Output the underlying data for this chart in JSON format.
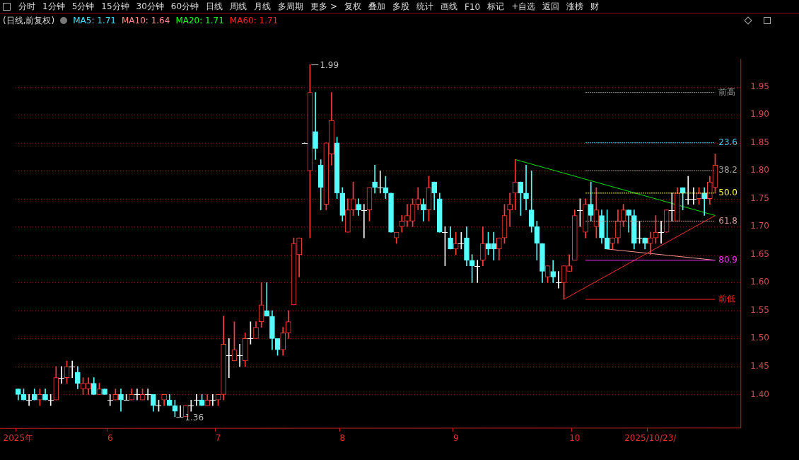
{
  "chart_data": {
    "type": "candlestick",
    "title": "(日线,前复权)",
    "subtitle": "MA5: 1.71  MA10: 1.64  MA20: 1.71  MA60: 1.71",
    "categories": [
      "2025年",
      null,
      null,
      null,
      null,
      null,
      null,
      null,
      null,
      null,
      null,
      null,
      null,
      null,
      null,
      null,
      null,
      "6",
      null,
      null,
      null,
      null,
      null,
      null,
      null,
      null,
      null,
      null,
      null,
      null,
      null,
      null,
      null,
      null,
      null,
      null,
      null,
      "7",
      null,
      null,
      null,
      null,
      null,
      null,
      null,
      null,
      null,
      null,
      null,
      null,
      null,
      null,
      null,
      null,
      null,
      null,
      null,
      null,
      null,
      null,
      "8",
      null,
      null,
      null,
      null,
      null,
      null,
      null,
      null,
      null,
      null,
      null,
      null,
      null,
      null,
      null,
      null,
      null,
      null,
      null,
      null,
      "9",
      null,
      null,
      null,
      null,
      null,
      null,
      null,
      null,
      null,
      null,
      null,
      null,
      null,
      null,
      null,
      null,
      null,
      null,
      null,
      null,
      null,
      "10",
      null,
      null,
      null,
      null,
      null,
      null,
      null,
      null,
      null,
      null,
      null,
      null,
      null,
      "2025/10/23/",
      null,
      null,
      null,
      null,
      null,
      null,
      null,
      null,
      null,
      null,
      null,
      null
    ],
    "ohlc": [
      [
        1.41,
        1.41,
        1.39,
        1.4
      ],
      [
        1.4,
        1.41,
        1.39,
        1.39
      ],
      [
        1.39,
        1.4,
        1.38,
        1.39
      ],
      [
        1.4,
        1.41,
        1.39,
        1.39
      ],
      [
        1.39,
        1.41,
        1.38,
        1.4
      ],
      [
        1.4,
        1.41,
        1.39,
        1.39
      ],
      [
        1.39,
        1.4,
        1.38,
        1.39
      ],
      [
        1.39,
        1.45,
        1.39,
        1.43
      ],
      [
        1.43,
        1.45,
        1.42,
        1.43
      ],
      [
        1.43,
        1.46,
        1.42,
        1.45
      ],
      [
        1.45,
        1.46,
        1.43,
        1.45
      ],
      [
        1.44,
        1.45,
        1.41,
        1.42
      ],
      [
        1.41,
        1.43,
        1.4,
        1.42
      ],
      [
        1.41,
        1.43,
        1.4,
        1.42
      ],
      [
        1.42,
        1.43,
        1.4,
        1.4
      ],
      [
        1.4,
        1.42,
        1.4,
        1.41
      ],
      [
        1.41,
        1.41,
        1.4,
        1.4
      ],
      [
        1.39,
        1.4,
        1.38,
        1.39
      ],
      [
        1.39,
        1.41,
        1.39,
        1.4
      ],
      [
        1.4,
        1.41,
        1.37,
        1.39
      ],
      [
        1.39,
        1.4,
        1.39,
        1.39
      ],
      [
        1.39,
        1.41,
        1.39,
        1.4
      ],
      [
        1.4,
        1.41,
        1.39,
        1.4
      ],
      [
        1.39,
        1.41,
        1.39,
        1.4
      ],
      [
        1.4,
        1.41,
        1.39,
        1.4
      ],
      [
        1.4,
        1.4,
        1.37,
        1.38
      ],
      [
        1.38,
        1.39,
        1.37,
        1.38
      ],
      [
        1.39,
        1.4,
        1.38,
        1.4
      ],
      [
        1.39,
        1.4,
        1.38,
        1.38
      ],
      [
        1.38,
        1.39,
        1.36,
        1.37
      ],
      [
        1.36,
        1.38,
        1.36,
        1.36
      ],
      [
        1.36,
        1.38,
        1.36,
        1.38
      ],
      [
        1.38,
        1.39,
        1.37,
        1.38
      ],
      [
        1.39,
        1.4,
        1.38,
        1.39
      ],
      [
        1.39,
        1.4,
        1.38,
        1.38
      ],
      [
        1.38,
        1.4,
        1.38,
        1.39
      ],
      [
        1.39,
        1.4,
        1.38,
        1.39
      ],
      [
        1.39,
        1.4,
        1.38,
        1.4
      ],
      [
        1.4,
        1.54,
        1.39,
        1.49
      ],
      [
        1.47,
        1.5,
        1.43,
        1.47
      ],
      [
        1.46,
        1.53,
        1.46,
        1.48
      ],
      [
        1.47,
        1.49,
        1.45,
        1.47
      ],
      [
        1.46,
        1.51,
        1.45,
        1.5
      ],
      [
        1.5,
        1.53,
        1.49,
        1.5
      ],
      [
        1.5,
        1.53,
        1.5,
        1.52
      ],
      [
        1.53,
        1.6,
        1.52,
        1.56
      ],
      [
        1.55,
        1.6,
        1.54,
        1.54
      ],
      [
        1.54,
        1.55,
        1.48,
        1.5
      ],
      [
        1.5,
        1.5,
        1.47,
        1.48
      ],
      [
        1.48,
        1.52,
        1.47,
        1.51
      ],
      [
        1.51,
        1.55,
        1.5,
        1.53
      ],
      [
        1.56,
        1.68,
        1.56,
        1.67
      ],
      [
        1.65,
        1.68,
        1.61,
        1.68
      ],
      [
        1.85,
        1.85,
        1.85,
        1.85
      ],
      [
        1.8,
        1.99,
        1.68,
        1.94
      ],
      [
        1.87,
        1.94,
        1.82,
        1.84
      ],
      [
        1.81,
        1.82,
        1.73,
        1.77
      ],
      [
        1.74,
        1.85,
        1.73,
        1.85
      ],
      [
        1.83,
        1.94,
        1.81,
        1.89
      ],
      [
        1.85,
        1.86,
        1.75,
        1.76
      ],
      [
        1.76,
        1.77,
        1.71,
        1.72
      ],
      [
        1.69,
        1.75,
        1.69,
        1.73
      ],
      [
        1.73,
        1.78,
        1.72,
        1.75
      ],
      [
        1.74,
        1.75,
        1.72,
        1.73
      ],
      [
        1.73,
        1.74,
        1.68,
        1.73
      ],
      [
        1.73,
        1.77,
        1.71,
        1.77
      ],
      [
        1.78,
        1.81,
        1.76,
        1.77
      ],
      [
        1.77,
        1.8,
        1.76,
        1.77
      ],
      [
        1.77,
        1.79,
        1.75,
        1.76
      ],
      [
        1.76,
        1.76,
        1.69,
        1.69
      ],
      [
        1.68,
        1.69,
        1.67,
        1.69
      ],
      [
        1.7,
        1.72,
        1.69,
        1.71
      ],
      [
        1.71,
        1.74,
        1.7,
        1.72
      ],
      [
        1.71,
        1.75,
        1.7,
        1.74
      ],
      [
        1.74,
        1.77,
        1.73,
        1.75
      ],
      [
        1.74,
        1.75,
        1.71,
        1.73
      ],
      [
        1.73,
        1.79,
        1.71,
        1.77
      ],
      [
        1.78,
        1.78,
        1.73,
        1.76
      ],
      [
        1.75,
        1.76,
        1.69,
        1.69
      ],
      [
        1.69,
        1.7,
        1.63,
        1.69
      ],
      [
        1.68,
        1.7,
        1.66,
        1.66
      ],
      [
        1.66,
        1.69,
        1.65,
        1.67
      ],
      [
        1.67,
        1.69,
        1.66,
        1.67
      ],
      [
        1.68,
        1.7,
        1.63,
        1.64
      ],
      [
        1.64,
        1.65,
        1.6,
        1.63
      ],
      [
        1.63,
        1.64,
        1.6,
        1.63
      ],
      [
        1.64,
        1.7,
        1.63,
        1.67
      ],
      [
        1.67,
        1.69,
        1.65,
        1.66
      ],
      [
        1.67,
        1.69,
        1.64,
        1.66
      ],
      [
        1.66,
        1.68,
        1.64,
        1.68
      ],
      [
        1.68,
        1.74,
        1.67,
        1.72
      ],
      [
        1.73,
        1.76,
        1.7,
        1.74
      ],
      [
        1.76,
        1.82,
        1.73,
        1.78
      ],
      [
        1.78,
        1.78,
        1.72,
        1.76
      ],
      [
        1.76,
        1.81,
        1.73,
        1.75
      ],
      [
        1.73,
        1.8,
        1.69,
        1.7
      ],
      [
        1.7,
        1.71,
        1.64,
        1.67
      ],
      [
        1.67,
        1.67,
        1.6,
        1.62
      ],
      [
        1.61,
        1.63,
        1.6,
        1.63
      ],
      [
        1.62,
        1.64,
        1.6,
        1.61
      ],
      [
        1.6,
        1.62,
        1.59,
        1.6
      ],
      [
        1.6,
        1.63,
        1.57,
        1.63
      ],
      [
        1.62,
        1.65,
        1.62,
        1.63
      ],
      [
        1.64,
        1.73,
        1.64,
        1.72
      ],
      [
        1.73,
        1.75,
        1.7,
        1.73
      ],
      [
        1.69,
        1.75,
        1.68,
        1.74
      ],
      [
        1.74,
        1.78,
        1.71,
        1.72
      ],
      [
        1.7,
        1.77,
        1.68,
        1.73
      ],
      [
        1.72,
        1.73,
        1.67,
        1.68
      ],
      [
        1.68,
        1.73,
        1.66,
        1.66
      ],
      [
        1.67,
        1.68,
        1.66,
        1.68
      ],
      [
        1.68,
        1.73,
        1.67,
        1.71
      ],
      [
        1.71,
        1.74,
        1.7,
        1.73
      ],
      [
        1.73,
        1.73,
        1.69,
        1.72
      ],
      [
        1.72,
        1.73,
        1.66,
        1.67
      ],
      [
        1.68,
        1.71,
        1.67,
        1.68
      ],
      [
        1.68,
        1.68,
        1.66,
        1.67
      ],
      [
        1.67,
        1.69,
        1.65,
        1.68
      ],
      [
        1.68,
        1.72,
        1.67,
        1.69
      ],
      [
        1.69,
        1.71,
        1.67,
        1.69
      ],
      [
        1.69,
        1.73,
        1.69,
        1.73
      ],
      [
        1.73,
        1.76,
        1.71,
        1.73
      ],
      [
        1.71,
        1.77,
        1.71,
        1.76
      ],
      [
        1.77,
        1.77,
        1.73,
        1.76
      ],
      [
        1.75,
        1.79,
        1.74,
        1.75
      ],
      [
        1.75,
        1.77,
        1.74,
        1.75
      ],
      [
        1.75,
        1.77,
        1.74,
        1.76
      ],
      [
        1.76,
        1.77,
        1.72,
        1.75
      ],
      [
        1.75,
        1.79,
        1.74,
        1.78
      ],
      [
        1.77,
        1.83,
        1.76,
        1.81
      ]
    ],
    "series": [
      {
        "type": "line",
        "color": "#00e000",
        "values": [
          null,
          null,
          null,
          null,
          null,
          null,
          null,
          null,
          null,
          null,
          null,
          null,
          null,
          null,
          null,
          null,
          null,
          null,
          null,
          null,
          null,
          null,
          null,
          null,
          null,
          null,
          null,
          null,
          null,
          null,
          null,
          null,
          null,
          null,
          null,
          null,
          null,
          null,
          null,
          null,
          null,
          null,
          null,
          null,
          null,
          null,
          null,
          null,
          null,
          null,
          null,
          null,
          null,
          null,
          null,
          null,
          null,
          null,
          null,
          null,
          null,
          null,
          null,
          null,
          null,
          null,
          null,
          null,
          null,
          null,
          null,
          null,
          null,
          null,
          null,
          null,
          null,
          null,
          null,
          null,
          null,
          null,
          null,
          null,
          null,
          null,
          null,
          null,
          null,
          null,
          null,
          null,
          1.82,
          null,
          null,
          null,
          null,
          null,
          null,
          null,
          null,
          null,
          null,
          null,
          null,
          null,
          null,
          null,
          null,
          null,
          null,
          null,
          null,
          null,
          null,
          null,
          null,
          null,
          null,
          null,
          null,
          null,
          null,
          null,
          null,
          null,
          null,
          null,
          null,
          1.72
        ]
      },
      {
        "type": "line",
        "color": "#ff3030",
        "values": [
          null,
          null,
          null,
          null,
          null,
          null,
          null,
          null,
          null,
          null,
          null,
          null,
          null,
          null,
          null,
          null,
          null,
          null,
          null,
          null,
          null,
          null,
          null,
          null,
          null,
          null,
          null,
          null,
          null,
          null,
          null,
          null,
          null,
          null,
          null,
          null,
          null,
          null,
          null,
          null,
          null,
          null,
          null,
          null,
          null,
          null,
          null,
          null,
          null,
          null,
          null,
          null,
          null,
          null,
          null,
          null,
          null,
          null,
          null,
          null,
          null,
          null,
          null,
          null,
          null,
          null,
          null,
          null,
          null,
          null,
          null,
          null,
          null,
          null,
          null,
          null,
          null,
          null,
          null,
          null,
          null,
          null,
          null,
          null,
          null,
          null,
          null,
          null,
          null,
          null,
          null,
          null,
          null,
          null,
          null,
          null,
          null,
          null,
          null,
          null,
          null,
          1.57,
          null,
          null,
          null,
          null,
          null,
          null,
          null,
          null,
          null,
          null,
          null,
          null,
          null,
          null,
          null,
          null,
          null,
          null,
          null,
          null,
          null,
          null,
          null,
          null,
          null,
          null,
          null,
          1.72
        ]
      },
      {
        "type": "line",
        "color": "#ff9090",
        "values": [
          null,
          null,
          null,
          null,
          null,
          null,
          null,
          null,
          null,
          null,
          null,
          null,
          null,
          null,
          null,
          null,
          null,
          null,
          null,
          null,
          null,
          null,
          null,
          null,
          null,
          null,
          null,
          null,
          null,
          null,
          null,
          null,
          null,
          null,
          null,
          null,
          null,
          null,
          null,
          null,
          null,
          null,
          null,
          null,
          null,
          null,
          null,
          null,
          null,
          null,
          null,
          null,
          null,
          null,
          null,
          null,
          null,
          null,
          null,
          null,
          null,
          null,
          null,
          null,
          null,
          null,
          null,
          null,
          null,
          null,
          null,
          null,
          null,
          null,
          null,
          null,
          null,
          null,
          null,
          null,
          null,
          null,
          null,
          null,
          null,
          null,
          null,
          null,
          null,
          null,
          null,
          null,
          null,
          null,
          null,
          null,
          null,
          null,
          null,
          null,
          null,
          null,
          null,
          null,
          null,
          null,
          null,
          null,
          null,
          1.66,
          null,
          null,
          null,
          null,
          null,
          null,
          null,
          null,
          null,
          null,
          null,
          null,
          null,
          null,
          null,
          null,
          null,
          null,
          null,
          1.64
        ]
      },
      {
        "type": "line",
        "name": "前高",
        "color": "#909090",
        "line_style": "dotted",
        "values": [
          null,
          null,
          null,
          null,
          null,
          null,
          null,
          null,
          null,
          null,
          null,
          null,
          null,
          null,
          null,
          null,
          null,
          null,
          null,
          null,
          null,
          null,
          null,
          null,
          null,
          null,
          null,
          null,
          null,
          null,
          null,
          null,
          null,
          null,
          null,
          null,
          null,
          null,
          null,
          null,
          null,
          null,
          null,
          null,
          null,
          null,
          null,
          null,
          null,
          null,
          null,
          null,
          null,
          null,
          null,
          null,
          null,
          null,
          null,
          null,
          null,
          null,
          null,
          null,
          null,
          null,
          null,
          null,
          null,
          null,
          null,
          null,
          null,
          null,
          null,
          null,
          null,
          null,
          null,
          null,
          null,
          null,
          null,
          null,
          null,
          null,
          null,
          null,
          null,
          null,
          null,
          null,
          null,
          null,
          null,
          null,
          null,
          null,
          null,
          null,
          null,
          null,
          null,
          null,
          null,
          1.94,
          null,
          null,
          null,
          null,
          null,
          null,
          null,
          null,
          null,
          null,
          null,
          null,
          null,
          null,
          null,
          null,
          null,
          null,
          null,
          null,
          null,
          null,
          null,
          1.94
        ]
      },
      {
        "type": "line",
        "name": "23.6",
        "color": "#40c8e8",
        "line_style": "dotted",
        "values": [
          null,
          null,
          null,
          null,
          null,
          null,
          null,
          null,
          null,
          null,
          null,
          null,
          null,
          null,
          null,
          null,
          null,
          null,
          null,
          null,
          null,
          null,
          null,
          null,
          null,
          null,
          null,
          null,
          null,
          null,
          null,
          null,
          null,
          null,
          null,
          null,
          null,
          null,
          null,
          null,
          null,
          null,
          null,
          null,
          null,
          null,
          null,
          null,
          null,
          null,
          null,
          null,
          null,
          null,
          null,
          null,
          null,
          null,
          null,
          null,
          null,
          null,
          null,
          null,
          null,
          null,
          null,
          null,
          null,
          null,
          null,
          null,
          null,
          null,
          null,
          null,
          null,
          null,
          null,
          null,
          null,
          null,
          null,
          null,
          null,
          null,
          null,
          null,
          null,
          null,
          null,
          null,
          null,
          null,
          null,
          null,
          null,
          null,
          null,
          null,
          null,
          null,
          null,
          null,
          null,
          1.85,
          null,
          null,
          null,
          null,
          null,
          null,
          null,
          null,
          null,
          null,
          null,
          null,
          null,
          null,
          null,
          null,
          null,
          null,
          null,
          null,
          null,
          null,
          null,
          1.85
        ]
      },
      {
        "type": "line",
        "name": "38.2",
        "color": "#a0a0a0",
        "line_style": "dotted",
        "values": [
          null,
          null,
          null,
          null,
          null,
          null,
          null,
          null,
          null,
          null,
          null,
          null,
          null,
          null,
          null,
          null,
          null,
          null,
          null,
          null,
          null,
          null,
          null,
          null,
          null,
          null,
          null,
          null,
          null,
          null,
          null,
          null,
          null,
          null,
          null,
          null,
          null,
          null,
          null,
          null,
          null,
          null,
          null,
          null,
          null,
          null,
          null,
          null,
          null,
          null,
          null,
          null,
          null,
          null,
          null,
          null,
          null,
          null,
          null,
          null,
          null,
          null,
          null,
          null,
          null,
          null,
          null,
          null,
          null,
          null,
          null,
          null,
          null,
          null,
          null,
          null,
          null,
          null,
          null,
          null,
          null,
          null,
          null,
          null,
          null,
          null,
          null,
          null,
          null,
          null,
          null,
          null,
          null,
          null,
          null,
          null,
          null,
          null,
          null,
          null,
          null,
          null,
          null,
          null,
          null,
          1.8,
          null,
          null,
          null,
          null,
          null,
          null,
          null,
          null,
          null,
          null,
          null,
          null,
          null,
          null,
          null,
          null,
          null,
          null,
          null,
          null,
          null,
          null,
          null,
          1.8
        ]
      },
      {
        "type": "line",
        "name": "50.0",
        "color": "#ffff40",
        "line_style": "dotted",
        "values": [
          null,
          null,
          null,
          null,
          null,
          null,
          null,
          null,
          null,
          null,
          null,
          null,
          null,
          null,
          null,
          null,
          null,
          null,
          null,
          null,
          null,
          null,
          null,
          null,
          null,
          null,
          null,
          null,
          null,
          null,
          null,
          null,
          null,
          null,
          null,
          null,
          null,
          null,
          null,
          null,
          null,
          null,
          null,
          null,
          null,
          null,
          null,
          null,
          null,
          null,
          null,
          null,
          null,
          null,
          null,
          null,
          null,
          null,
          null,
          null,
          null,
          null,
          null,
          null,
          null,
          null,
          null,
          null,
          null,
          null,
          null,
          null,
          null,
          null,
          null,
          null,
          null,
          null,
          null,
          null,
          null,
          null,
          null,
          null,
          null,
          null,
          null,
          null,
          null,
          null,
          null,
          null,
          null,
          null,
          null,
          null,
          null,
          null,
          null,
          null,
          null,
          null,
          null,
          null,
          null,
          1.76,
          null,
          null,
          null,
          null,
          null,
          null,
          null,
          null,
          null,
          null,
          null,
          null,
          null,
          null,
          null,
          null,
          null,
          null,
          null,
          null,
          null,
          null,
          null,
          1.76
        ]
      },
      {
        "type": "line",
        "name": "61.8",
        "color": "#d09898",
        "line_style": "dotted",
        "values": [
          null,
          null,
          null,
          null,
          null,
          null,
          null,
          null,
          null,
          null,
          null,
          null,
          null,
          null,
          null,
          null,
          null,
          null,
          null,
          null,
          null,
          null,
          null,
          null,
          null,
          null,
          null,
          null,
          null,
          null,
          null,
          null,
          null,
          null,
          null,
          null,
          null,
          null,
          null,
          null,
          null,
          null,
          null,
          null,
          null,
          null,
          null,
          null,
          null,
          null,
          null,
          null,
          null,
          null,
          null,
          null,
          null,
          null,
          null,
          null,
          null,
          null,
          null,
          null,
          null,
          null,
          null,
          null,
          null,
          null,
          null,
          null,
          null,
          null,
          null,
          null,
          null,
          null,
          null,
          null,
          null,
          null,
          null,
          null,
          null,
          null,
          null,
          null,
          null,
          null,
          null,
          null,
          null,
          null,
          null,
          null,
          null,
          null,
          null,
          null,
          null,
          null,
          null,
          null,
          null,
          1.71,
          null,
          null,
          null,
          null,
          null,
          null,
          null,
          null,
          null,
          null,
          null,
          null,
          null,
          null,
          null,
          null,
          null,
          null,
          null,
          null,
          null,
          null,
          null,
          1.71
        ]
      },
      {
        "type": "line",
        "name": "80.9",
        "color": "#ff30ff",
        "line_style": "solid",
        "values": [
          null,
          null,
          null,
          null,
          null,
          null,
          null,
          null,
          null,
          null,
          null,
          null,
          null,
          null,
          null,
          null,
          null,
          null,
          null,
          null,
          null,
          null,
          null,
          null,
          null,
          null,
          null,
          null,
          null,
          null,
          null,
          null,
          null,
          null,
          null,
          null,
          null,
          null,
          null,
          null,
          null,
          null,
          null,
          null,
          null,
          null,
          null,
          null,
          null,
          null,
          null,
          null,
          null,
          null,
          null,
          null,
          null,
          null,
          null,
          null,
          null,
          null,
          null,
          null,
          null,
          null,
          null,
          null,
          null,
          null,
          null,
          null,
          null,
          null,
          null,
          null,
          null,
          null,
          null,
          null,
          null,
          null,
          null,
          null,
          null,
          null,
          null,
          null,
          null,
          null,
          null,
          null,
          null,
          null,
          null,
          null,
          null,
          null,
          null,
          null,
          null,
          null,
          null,
          null,
          null,
          1.64,
          null,
          null,
          null,
          null,
          null,
          null,
          null,
          null,
          null,
          null,
          null,
          null,
          null,
          null,
          null,
          null,
          null,
          null,
          null,
          null,
          null,
          null,
          null,
          1.64
        ]
      },
      {
        "type": "line",
        "name": "前低",
        "color": "#ff2020",
        "line_style": "solid",
        "values": [
          null,
          null,
          null,
          null,
          null,
          null,
          null,
          null,
          null,
          null,
          null,
          null,
          null,
          null,
          null,
          null,
          null,
          null,
          null,
          null,
          null,
          null,
          null,
          null,
          null,
          null,
          null,
          null,
          null,
          null,
          null,
          null,
          null,
          null,
          null,
          null,
          null,
          null,
          null,
          null,
          null,
          null,
          null,
          null,
          null,
          null,
          null,
          null,
          null,
          null,
          null,
          null,
          null,
          null,
          null,
          null,
          null,
          null,
          null,
          null,
          null,
          null,
          null,
          null,
          null,
          null,
          null,
          null,
          null,
          null,
          null,
          null,
          null,
          null,
          null,
          null,
          null,
          null,
          null,
          null,
          null,
          null,
          null,
          null,
          null,
          null,
          null,
          null,
          null,
          null,
          null,
          null,
          null,
          null,
          null,
          null,
          null,
          null,
          null,
          null,
          null,
          null,
          null,
          null,
          null,
          1.57,
          null,
          null,
          null,
          null,
          null,
          null,
          null,
          null,
          null,
          null,
          null,
          null,
          null,
          null,
          null,
          null,
          null,
          null,
          null,
          null,
          null,
          null,
          null,
          1.57
        ]
      }
    ],
    "ylim": [
      1.34,
      2.0
    ],
    "yticks": [
      {
        "value": 1.4,
        "label": "1.40"
      },
      {
        "value": 1.45,
        "label": "1.45"
      },
      {
        "value": 1.5,
        "label": "1.50"
      },
      {
        "value": 1.55,
        "label": "1.55"
      },
      {
        "value": 1.6,
        "label": "1.60"
      },
      {
        "value": 1.65,
        "label": "1.65"
      },
      {
        "value": 1.7,
        "label": "1.70"
      },
      {
        "value": 1.75,
        "label": "1.75"
      },
      {
        "value": 1.8,
        "label": "1.80"
      },
      {
        "value": 1.85,
        "label": "1.85"
      },
      {
        "value": 1.9,
        "label": "1.90"
      },
      {
        "value": 1.95,
        "label": "1.95"
      }
    ],
    "grid": "y",
    "annotations": [
      "分时",
      "1分钟",
      "5分钟",
      "15分钟",
      "30分钟",
      "60分钟",
      "日线",
      "周线",
      "月线",
      "多周期",
      "更多 >",
      "复权",
      "叠加",
      "多股",
      "统计",
      "画线",
      "F10",
      "标记",
      "+自选",
      "返回",
      "涨榜",
      "财",
      "1.99",
      "1.36"
    ],
    "legend": false
  }
}
